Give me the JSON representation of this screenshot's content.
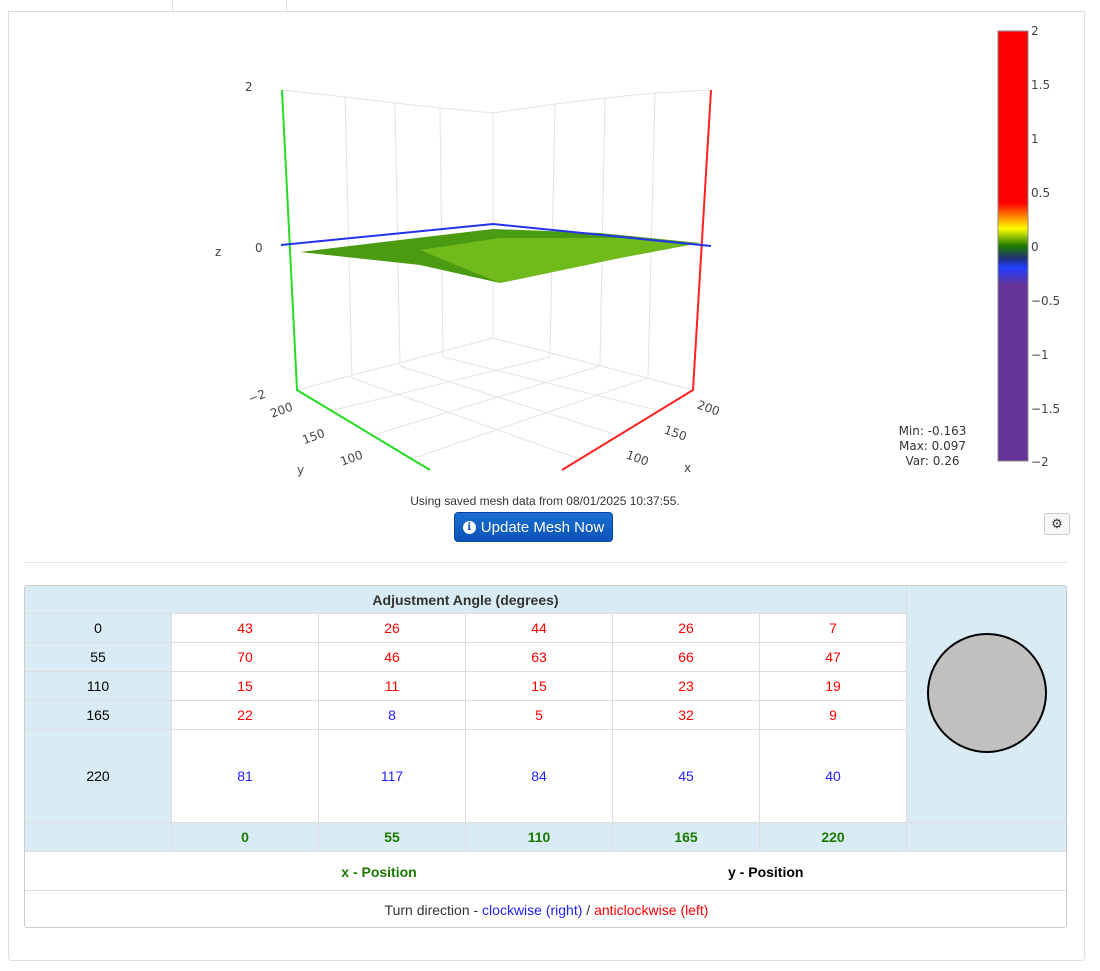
{
  "plot": {
    "z_label": "z",
    "x_label": "x",
    "y_label": "y",
    "z_ticks": [
      "2",
      "0",
      "−2"
    ],
    "x_ticks": [
      "200",
      "150",
      "100"
    ],
    "y_ticks": [
      "200",
      "150",
      "100"
    ],
    "surface_color": "#4a9a12",
    "colorbar": {
      "ticks": [
        "2",
        "1.5",
        "1",
        "0.5",
        "0",
        "−0.5",
        "−1",
        "−1.5",
        "−2"
      ],
      "range": [
        -2,
        2
      ]
    }
  },
  "stats": {
    "min": "Min: -0.163",
    "max": "Max: 0.097",
    "var": "Var: 0.26"
  },
  "saved_message": "Using saved mesh data from 08/01/2025 10:37:55.",
  "update_button": "Update Mesh Now",
  "table": {
    "title": "Adjustment Angle (degrees)",
    "rows": [
      {
        "label": "0",
        "values": [
          {
            "v": "43",
            "d": "pos"
          },
          {
            "v": "26",
            "d": "pos"
          },
          {
            "v": "44",
            "d": "pos"
          },
          {
            "v": "26",
            "d": "pos"
          },
          {
            "v": "7",
            "d": "pos"
          }
        ]
      },
      {
        "label": "55",
        "values": [
          {
            "v": "70",
            "d": "pos"
          },
          {
            "v": "46",
            "d": "pos"
          },
          {
            "v": "63",
            "d": "pos"
          },
          {
            "v": "66",
            "d": "pos"
          },
          {
            "v": "47",
            "d": "pos"
          }
        ]
      },
      {
        "label": "110",
        "values": [
          {
            "v": "15",
            "d": "pos"
          },
          {
            "v": "11",
            "d": "pos"
          },
          {
            "v": "15",
            "d": "pos"
          },
          {
            "v": "23",
            "d": "pos"
          },
          {
            "v": "19",
            "d": "pos"
          }
        ]
      },
      {
        "label": "165",
        "values": [
          {
            "v": "22",
            "d": "pos"
          },
          {
            "v": "8",
            "d": "neg"
          },
          {
            "v": "5",
            "d": "pos"
          },
          {
            "v": "32",
            "d": "pos"
          },
          {
            "v": "9",
            "d": "pos"
          }
        ]
      },
      {
        "label": "220",
        "values": [
          {
            "v": "81",
            "d": "neg"
          },
          {
            "v": "117",
            "d": "neg"
          },
          {
            "v": "84",
            "d": "neg"
          },
          {
            "v": "45",
            "d": "neg"
          },
          {
            "v": "40",
            "d": "neg"
          }
        ]
      }
    ],
    "x_positions": [
      "0",
      "55",
      "110",
      "165",
      "220"
    ],
    "x_legend": "x - Position",
    "y_legend": "y - Position",
    "turn_prefix": "Turn direction - ",
    "clockwise": "clockwise (right)",
    "separator": " / ",
    "anticlockwise": "anticlockwise (left)"
  }
}
